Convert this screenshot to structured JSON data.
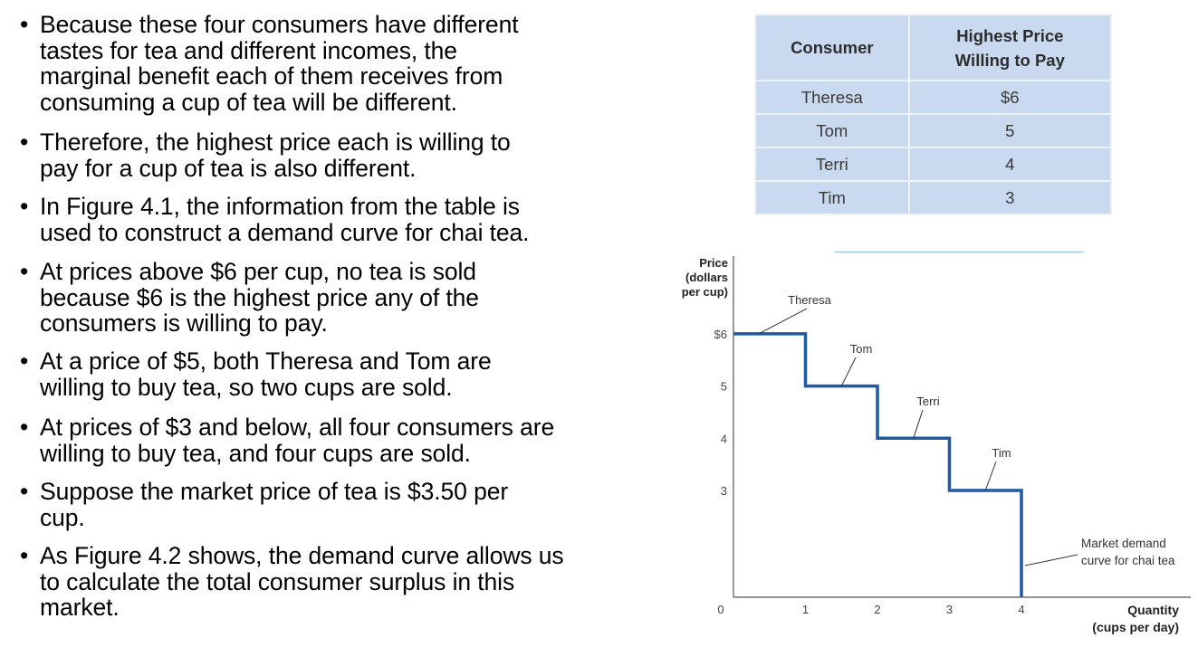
{
  "bullets": [
    "Because these four consumers have different tastes for tea and different incomes, the marginal benefit each of them receives from consuming a cup of tea will be different.",
    "Therefore, the highest price each is willing to pay for a cup of tea is also different.",
    "In Figure 4.1, the information from the table is used to construct a demand curve for chai tea.",
    "At prices above $6 per cup, no tea is sold because $6 is the highest price any of the consumers is willing to pay.",
    "At a price of $5, both Theresa and Tom are willing to buy tea, so two cups are sold.",
    "At prices of $3 and below, all four consumers are willing to buy tea, and four cups are sold.",
    "Suppose the market price of tea is $3.50 per cup.",
    "As Figure 4.2 shows, the demand curve allows us to calculate the total consumer surplus in this market."
  ],
  "bullet_lines": [
    [
      "Because these four consumers have different",
      "tastes for tea and different incomes, the",
      "marginal benefit each of them receives from",
      "consuming a cup of tea will be different."
    ],
    [
      "Therefore, the highest price each is willing to",
      "pay for a cup of tea is also different."
    ],
    [
      "In Figure 4.1, the information from the table is",
      "used to construct a demand curve for chai tea."
    ],
    [
      "At prices above $6 per cup, no tea is sold",
      "because $6 is the highest price any of the",
      "consumers is willing to pay."
    ],
    [
      "At a price of $5, both Theresa and Tom are",
      "willing to buy tea, so two cups are sold."
    ],
    [
      "At prices of $3 and below, all four consumers are",
      "willing to buy tea, and four cups are sold."
    ],
    [
      "Suppose the market price of tea is $3.50 per",
      "cup."
    ],
    [
      "As Figure 4.2 shows, the demand curve allows us",
      "to calculate the total consumer surplus in this",
      "market."
    ]
  ],
  "bullet_glyph": "•",
  "table": {
    "headers": [
      "Consumer",
      "Highest Price Willing to Pay"
    ],
    "header_lines": [
      "Highest Price",
      "Willing to Pay"
    ],
    "rows": [
      [
        "Theresa",
        "$6"
      ],
      [
        "Tom",
        "5"
      ],
      [
        "Terri",
        "4"
      ],
      [
        "Tim",
        "3"
      ]
    ]
  },
  "colors": {
    "curve": "#1f5aa6",
    "table_bg": "#c9daf0",
    "table_border": "#5b9bd5"
  },
  "chart_data": {
    "type": "line",
    "step": true,
    "title": "",
    "ylabel_lines": [
      "Price",
      "(dollars",
      "per cup)"
    ],
    "xlabel_lines": [
      "Quantity",
      "(cups per day)"
    ],
    "x_ticks": [
      "0",
      "1",
      "2",
      "3",
      "4"
    ],
    "y_ticks": [
      {
        "value": 6,
        "label": "$6"
      },
      {
        "value": 5,
        "label": "5"
      },
      {
        "value": 4,
        "label": "4"
      },
      {
        "value": 3,
        "label": "3"
      }
    ],
    "xlim": [
      0,
      6
    ],
    "ylim": [
      0,
      7
    ],
    "series": [
      {
        "name": "Market demand curve for chai tea",
        "points": [
          [
            0,
            6
          ],
          [
            1,
            6
          ],
          [
            1,
            5
          ],
          [
            2,
            5
          ],
          [
            2,
            4
          ],
          [
            3,
            4
          ],
          [
            3,
            3
          ],
          [
            4,
            3
          ],
          [
            4,
            0
          ]
        ]
      }
    ],
    "annotations": [
      {
        "text": "Theresa",
        "x": 0.5,
        "y": 6
      },
      {
        "text": "Tom",
        "x": 1.5,
        "y": 5
      },
      {
        "text": "Terri",
        "x": 2.5,
        "y": 4
      },
      {
        "text": "Tim",
        "x": 3.5,
        "y": 3
      }
    ],
    "curve_label_lines": [
      "Market demand",
      "curve for chai tea"
    ]
  }
}
